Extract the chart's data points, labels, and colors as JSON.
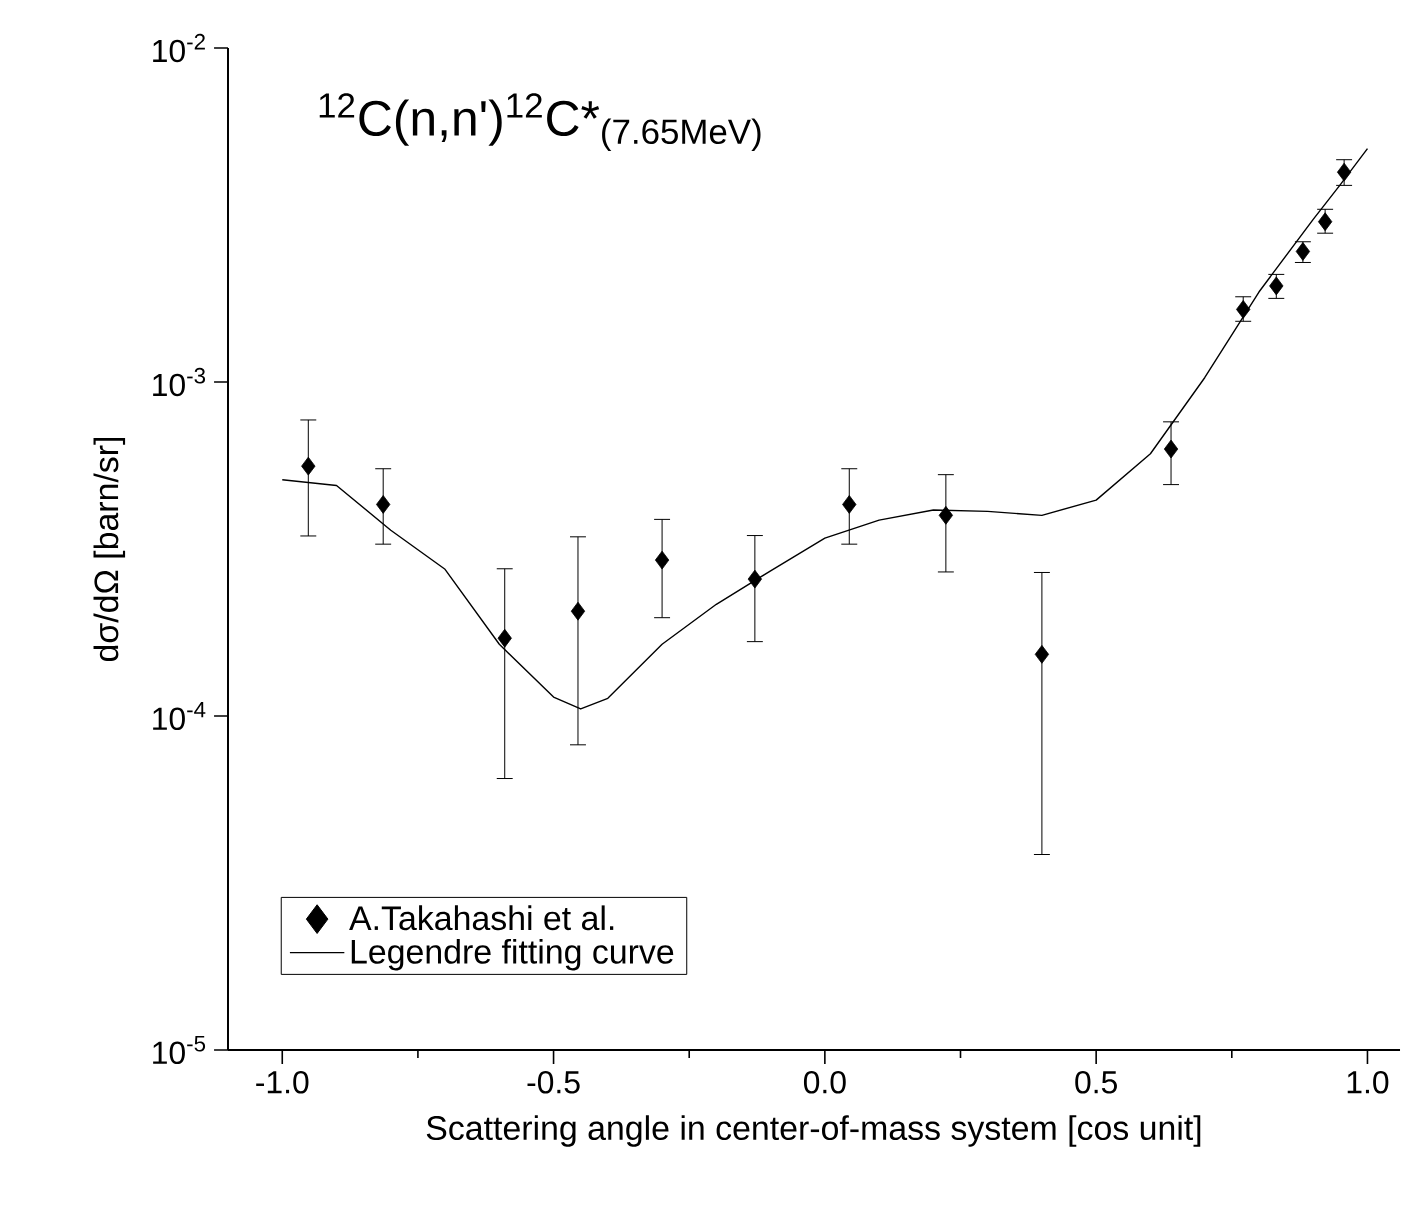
{
  "chart_data": {
    "type": "scatter",
    "title": "$^{12}$C(n,n')$^{12}$C*$_{(7.65MeV)}$",
    "xlabel": "Scattering angle in center-of-mass system [cos unit]",
    "ylabel": "dσ/dΩ [barn/sr]",
    "log": "y",
    "xlim": [
      -1.1,
      1.06
    ],
    "ylim": [
      1e-05,
      0.01
    ],
    "xticks": [
      {
        "value": -1,
        "label": "-1.0"
      },
      -0.5,
      {
        "value": 0,
        "label": "0.0"
      },
      0.5,
      {
        "value": 1,
        "label": "1.0"
      }
    ],
    "yticks": [
      {
        "value": 1e-05,
        "label": "10$^{-5}$"
      },
      {
        "value": 0.0001,
        "label": "10$^{-4}$"
      },
      {
        "value": 0.001,
        "label": "10$^{-3}$"
      },
      {
        "value": 0.01,
        "label": "10$^{-2}$"
      }
    ],
    "grid": false,
    "legend": "bottom left",
    "series": [
      {
        "name": "A.Takahashi et al.",
        "marker": "diamond",
        "color": "#000000",
        "x": [
          -0.952,
          -0.814,
          -0.59,
          -0.455,
          -0.3,
          -0.129,
          0.045,
          0.223,
          0.4,
          0.638,
          0.771,
          0.832,
          0.881,
          0.922,
          0.957
        ],
        "values": [
          0.00056,
          0.00043,
          0.000171,
          0.000206,
          0.000293,
          0.000257,
          0.00043,
          0.000399,
          0.000153,
          0.00063,
          0.00165,
          0.00194,
          0.00246,
          0.00302,
          0.00425
        ],
        "errors": [
          [
            0.000346,
            0.00077
          ],
          [
            0.000327,
            0.00055
          ],
          [
            6.5e-05,
            0.000276
          ],
          [
            8.2e-05,
            0.000344
          ],
          [
            0.000197,
            0.000388
          ],
          [
            0.000167,
            0.000347
          ],
          [
            0.000327,
            0.00055
          ],
          [
            0.00027,
            0.000528
          ],
          [
            3.85e-05,
            0.000269
          ],
          [
            0.000493,
            0.00076
          ],
          [
            0.00152,
            0.0018
          ],
          [
            0.00178,
            0.0021
          ],
          [
            0.00228,
            0.00263
          ],
          [
            0.00279,
            0.00329
          ],
          [
            0.00388,
            0.00463
          ]
        ]
      },
      {
        "name": "Legendre fitting curve",
        "type": "line",
        "line_style": "solid",
        "color": "#000000",
        "x": [
          -1.0,
          -0.9,
          -0.8,
          -0.7,
          -0.6,
          -0.5,
          -0.45,
          -0.4,
          -0.3,
          -0.2,
          -0.1,
          0.0,
          0.1,
          0.2,
          0.3,
          0.4,
          0.5,
          0.6,
          0.7,
          0.8,
          0.9,
          0.95,
          1.0
        ],
        "values": [
          0.00051,
          0.00049,
          0.00036,
          0.000275,
          0.000164,
          0.000114,
          0.000105,
          0.000113,
          0.000164,
          0.000216,
          0.000272,
          0.000341,
          0.000386,
          0.000414,
          0.00041,
          0.000399,
          0.000443,
          0.00061,
          0.00103,
          0.00186,
          0.00307,
          0.0039,
          0.005
        ]
      }
    ]
  }
}
